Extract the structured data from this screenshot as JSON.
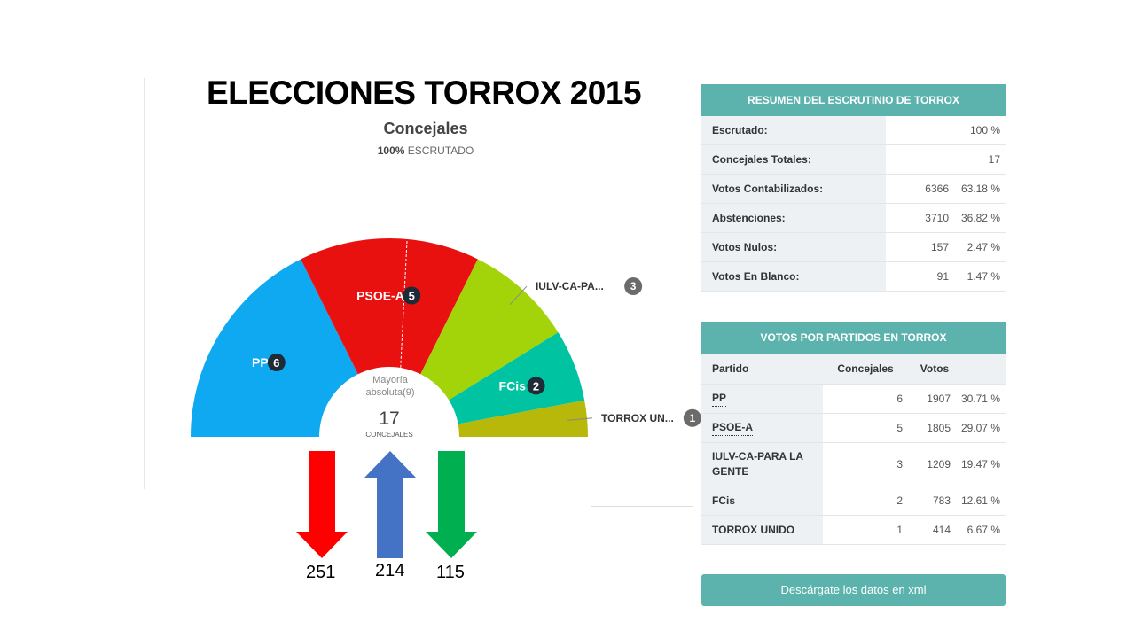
{
  "slide_title": "ELECCIONES TORROX 2015",
  "chart": {
    "title": "Concejales",
    "sub_pct": "100%",
    "sub_text": "ESCRUTADO",
    "center_label_1": "Mayoría",
    "center_label_2": "absoluta(9)",
    "center_value": "17",
    "center_caption": "CONCEJALES"
  },
  "chart_data": {
    "type": "pie",
    "variant": "half-donut parliament chart",
    "title": "Concejales",
    "total": 17,
    "majority": 9,
    "series": [
      {
        "name": "PP",
        "label": "PP",
        "value": 6,
        "color": "#0fa9f2"
      },
      {
        "name": "PSOE-A",
        "label": "PSOE-A",
        "value": 5,
        "color": "#e8110f"
      },
      {
        "name": "IULV-CA-PARA LA GENTE",
        "label": "IULV-CA-PA...",
        "value": 3,
        "color": "#a3d40a"
      },
      {
        "name": "FCis",
        "label": "FCis",
        "value": 2,
        "color": "#00c4a1"
      },
      {
        "name": "TORROX UNIDO",
        "label": "TORROX UN...",
        "value": 1,
        "color": "#b8b80b"
      }
    ]
  },
  "arrows": [
    {
      "value": "251",
      "direction": "down",
      "color": "#ff0000"
    },
    {
      "value": "214",
      "direction": "up",
      "color": "#4472c4"
    },
    {
      "value": "115",
      "direction": "down",
      "color": "#00b050"
    }
  ],
  "summary": {
    "header": "RESUMEN DEL ESCRUTINIO DE TORROX",
    "rows": [
      {
        "label": "Escrutado:",
        "v1": "",
        "v2": "100 %"
      },
      {
        "label": "Concejales Totales:",
        "v1": "",
        "v2": "17"
      },
      {
        "label": "Votos Contabilizados:",
        "v1": "6366",
        "v2": "63.18 %"
      },
      {
        "label": "Abstenciones:",
        "v1": "3710",
        "v2": "36.82 %"
      },
      {
        "label": "Votos Nulos:",
        "v1": "157",
        "v2": "2.47 %"
      },
      {
        "label": "Votos En Blanco:",
        "v1": "91",
        "v2": "1.47 %"
      }
    ]
  },
  "parties": {
    "header": "VOTOS POR PARTIDOS EN TORROX",
    "col_partido": "Partido",
    "col_concejales": "Concejales",
    "col_votos": "Votos",
    "rows": [
      {
        "name": "PP",
        "seats": "6",
        "votes": "1907",
        "pct": "30.71 %",
        "link": true
      },
      {
        "name": "PSOE-A",
        "seats": "5",
        "votes": "1805",
        "pct": "29.07 %",
        "link": true
      },
      {
        "name": "IULV-CA-PARA LA GENTE",
        "seats": "3",
        "votes": "1209",
        "pct": "19.47 %",
        "link": false
      },
      {
        "name": "FCis",
        "seats": "2",
        "votes": "783",
        "pct": "12.61 %",
        "link": false
      },
      {
        "name": "TORROX UNIDO",
        "seats": "1",
        "votes": "414",
        "pct": "6.67 %",
        "link": false
      }
    ]
  },
  "download_button": "Descárgate los datos en xml"
}
